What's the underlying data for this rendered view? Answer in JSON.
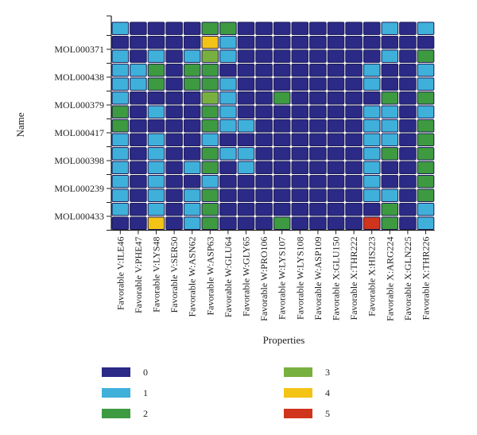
{
  "chart_data": {
    "type": "heatmap",
    "xlabel": "Properties",
    "ylabel": "Name",
    "x_categories": [
      "Favorable V:ILE46",
      "Favorable V:PHE47",
      "Favorable V:LYS48",
      "Favorable V:SER50",
      "Favorable W:ASN62",
      "Favorable W:ASP63",
      "Favorable W:GLU64",
      "Favorable W:GLY65",
      "Favorable W:PRO106",
      "Favorable W:LYS107",
      "Favorable W:LYS108",
      "Favorable W:ASP109",
      "Favorable X:GLU150",
      "Favorable X:THR222",
      "Favorable X:HIS223",
      "Favorable X:ARG224",
      "Favorable X:GLN225",
      "Favorable X:THR226"
    ],
    "y_tick_labels": [
      "MOL000371",
      "MOL000438",
      "MOL000379",
      "MOL000417",
      "MOL000398",
      "MOL000239",
      "MOL000433"
    ],
    "rows": 15,
    "values": [
      [
        1,
        0,
        0,
        0,
        0,
        2,
        2,
        0,
        0,
        0,
        0,
        0,
        0,
        0,
        0,
        1,
        0,
        1
      ],
      [
        0,
        0,
        0,
        0,
        0,
        4,
        1,
        0,
        0,
        0,
        0,
        0,
        0,
        0,
        0,
        0,
        0,
        0
      ],
      [
        1,
        0,
        1,
        0,
        1,
        3,
        1,
        0,
        0,
        0,
        0,
        0,
        0,
        0,
        0,
        1,
        0,
        2
      ],
      [
        1,
        1,
        2,
        0,
        2,
        2,
        0,
        0,
        0,
        0,
        0,
        0,
        0,
        0,
        1,
        0,
        0,
        1
      ],
      [
        1,
        1,
        2,
        0,
        2,
        2,
        1,
        0,
        0,
        0,
        0,
        0,
        0,
        0,
        1,
        0,
        0,
        1
      ],
      [
        1,
        0,
        0,
        0,
        0,
        3,
        1,
        0,
        0,
        2,
        0,
        0,
        0,
        0,
        0,
        2,
        0,
        2
      ],
      [
        2,
        0,
        1,
        0,
        0,
        2,
        1,
        0,
        0,
        0,
        0,
        0,
        0,
        0,
        1,
        1,
        0,
        1
      ],
      [
        2,
        0,
        0,
        0,
        0,
        2,
        1,
        1,
        0,
        0,
        0,
        0,
        0,
        0,
        1,
        1,
        0,
        2
      ],
      [
        1,
        0,
        1,
        0,
        0,
        1,
        0,
        0,
        0,
        0,
        0,
        0,
        0,
        0,
        1,
        1,
        0,
        2
      ],
      [
        1,
        0,
        1,
        0,
        0,
        2,
        1,
        1,
        0,
        0,
        0,
        0,
        0,
        0,
        1,
        2,
        0,
        2
      ],
      [
        1,
        0,
        1,
        0,
        1,
        2,
        0,
        1,
        0,
        0,
        0,
        0,
        0,
        0,
        1,
        0,
        0,
        2
      ],
      [
        1,
        0,
        1,
        0,
        0,
        1,
        0,
        0,
        0,
        0,
        0,
        0,
        0,
        0,
        1,
        0,
        0,
        2
      ],
      [
        1,
        0,
        1,
        0,
        1,
        2,
        0,
        0,
        0,
        0,
        0,
        0,
        0,
        0,
        1,
        1,
        0,
        2
      ],
      [
        1,
        0,
        1,
        0,
        1,
        2,
        0,
        0,
        0,
        0,
        0,
        0,
        0,
        0,
        0,
        2,
        0,
        1
      ],
      [
        0,
        0,
        4,
        0,
        1,
        2,
        0,
        0,
        0,
        2,
        0,
        0,
        0,
        0,
        5,
        2,
        0,
        1
      ]
    ],
    "legend": [
      {
        "value": "0",
        "color": "#2b2a86"
      },
      {
        "value": "1",
        "color": "#3fb0da"
      },
      {
        "value": "2",
        "color": "#3d9a40"
      },
      {
        "value": "3",
        "color": "#78b040"
      },
      {
        "value": "4",
        "color": "#f3c316"
      },
      {
        "value": "5",
        "color": "#d0341c"
      }
    ],
    "legend_position": "bottom"
  }
}
